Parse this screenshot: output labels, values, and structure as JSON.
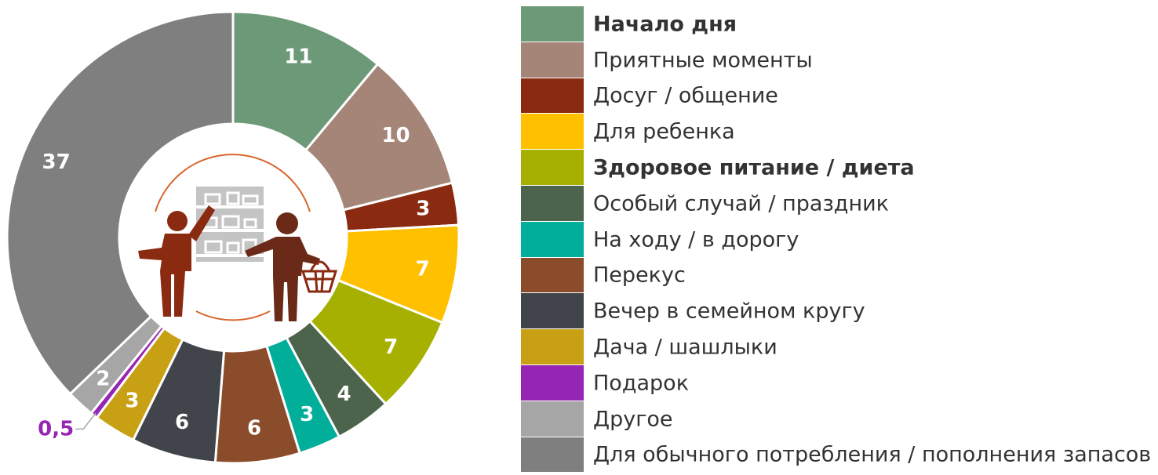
{
  "chart_data": {
    "type": "pie",
    "donut": true,
    "legend_position": "right",
    "series": [
      {
        "name": "Начало дня",
        "value": 11,
        "label": "11",
        "color": "#6c9a78",
        "bold": true
      },
      {
        "name": "Приятные моменты",
        "value": 10,
        "label": "10",
        "color": "#a58577",
        "bold": false
      },
      {
        "name": "Досуг / общение",
        "value": 3,
        "label": "3",
        "color": "#8a2a10",
        "bold": false
      },
      {
        "name": "Для ребенка",
        "value": 7,
        "label": "7",
        "color": "#ffc000",
        "bold": false
      },
      {
        "name": "Здоровое питание / диета",
        "value": 7,
        "label": "7",
        "color": "#a5b000",
        "bold": true
      },
      {
        "name": "Особый случай / праздник",
        "value": 4,
        "label": "4",
        "color": "#4d644c",
        "bold": false
      },
      {
        "name": "На ходу / в дорогу",
        "value": 3,
        "label": "3",
        "color": "#00ae9a",
        "bold": false
      },
      {
        "name": "Перекус",
        "value": 6,
        "label": "6",
        "color": "#8a4c2a",
        "bold": false
      },
      {
        "name": "Вечер в семейном кругу",
        "value": 6,
        "label": "6",
        "color": "#41444a",
        "bold": false
      },
      {
        "name": "Дача / шашлыки",
        "value": 3,
        "label": "3",
        "color": "#c8a014",
        "bold": false
      },
      {
        "name": "Подарок",
        "value": 0.5,
        "label": "0,5",
        "color": "#9526b3",
        "bold": false
      },
      {
        "name": "Другое",
        "value": 2,
        "label": "2",
        "color": "#a6a6a6",
        "bold": false
      },
      {
        "name": "Для обычного потребления / пополнения запасов",
        "value": 37,
        "label": "37",
        "color": "#7f7f7f",
        "bold": false
      }
    ]
  },
  "icon": "shoppers-at-shelf-icon"
}
